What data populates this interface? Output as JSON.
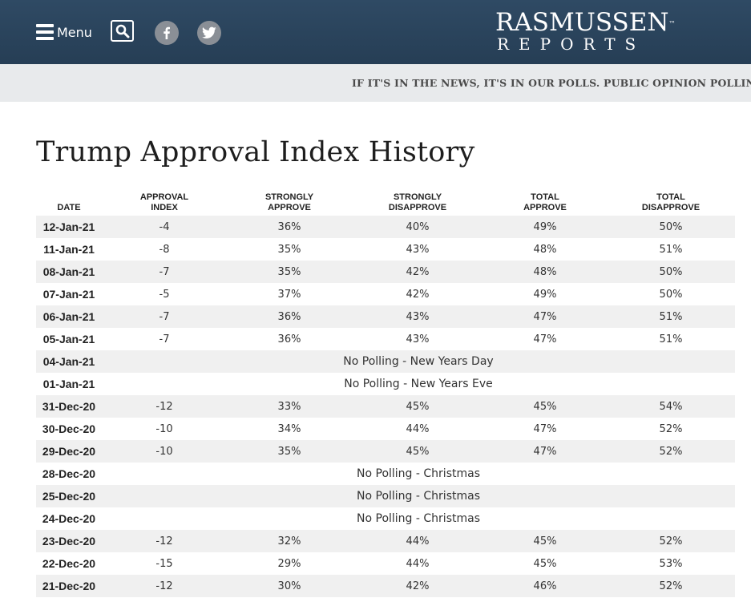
{
  "header": {
    "menu_label": "Menu",
    "logo_top": "RASMUSSEN",
    "logo_tm": "™",
    "logo_bottom": "REPORTS",
    "colors": {
      "bar": "#2b4560",
      "social": "#8a8f96"
    },
    "icons": [
      "hamburger-icon",
      "search-icon",
      "facebook-icon",
      "twitter-icon"
    ]
  },
  "tagline": "IF IT'S IN THE NEWS, IT'S IN OUR POLLS. PUBLIC OPINION POLLING SINC",
  "page_title": "Trump Approval Index History",
  "table": {
    "headers": [
      [
        "DATE"
      ],
      [
        "APPROVAL",
        "INDEX"
      ],
      [
        "STRONGLY",
        "APPROVE"
      ],
      [
        "STRONGLY",
        "DISAPPROVE"
      ],
      [
        "TOTAL",
        "APPROVE"
      ],
      [
        "TOTAL",
        "DISAPPROVE"
      ]
    ],
    "rows": [
      {
        "date": "12-Jan-21",
        "values": [
          "-4",
          "36%",
          "40%",
          "49%",
          "50%"
        ]
      },
      {
        "date": "11-Jan-21",
        "values": [
          "-8",
          "35%",
          "43%",
          "48%",
          "51%"
        ]
      },
      {
        "date": "08-Jan-21",
        "values": [
          "-7",
          "35%",
          "42%",
          "48%",
          "50%"
        ]
      },
      {
        "date": "07-Jan-21",
        "values": [
          "-5",
          "37%",
          "42%",
          "49%",
          "50%"
        ]
      },
      {
        "date": "06-Jan-21",
        "values": [
          "-7",
          "36%",
          "43%",
          "47%",
          "51%"
        ]
      },
      {
        "date": "05-Jan-21",
        "values": [
          "-7",
          "36%",
          "43%",
          "47%",
          "51%"
        ]
      },
      {
        "date": "04-Jan-21",
        "note": "No Polling - New Years Day"
      },
      {
        "date": "01-Jan-21",
        "note": "No Polling - New Years Eve"
      },
      {
        "date": "31-Dec-20",
        "values": [
          "-12",
          "33%",
          "45%",
          "45%",
          "54%"
        ]
      },
      {
        "date": "30-Dec-20",
        "values": [
          "-10",
          "34%",
          "44%",
          "47%",
          "52%"
        ]
      },
      {
        "date": "29-Dec-20",
        "values": [
          "-10",
          "35%",
          "45%",
          "47%",
          "52%"
        ]
      },
      {
        "date": "28-Dec-20",
        "note": "No Polling - Christmas"
      },
      {
        "date": "25-Dec-20",
        "note": "No Polling - Christmas"
      },
      {
        "date": "24-Dec-20",
        "note": "No Polling - Christmas"
      },
      {
        "date": "23-Dec-20",
        "values": [
          "-12",
          "32%",
          "44%",
          "45%",
          "52%"
        ]
      },
      {
        "date": "22-Dec-20",
        "values": [
          "-15",
          "29%",
          "44%",
          "45%",
          "53%"
        ]
      },
      {
        "date": "21-Dec-20",
        "values": [
          "-12",
          "30%",
          "42%",
          "46%",
          "52%"
        ]
      }
    ]
  }
}
